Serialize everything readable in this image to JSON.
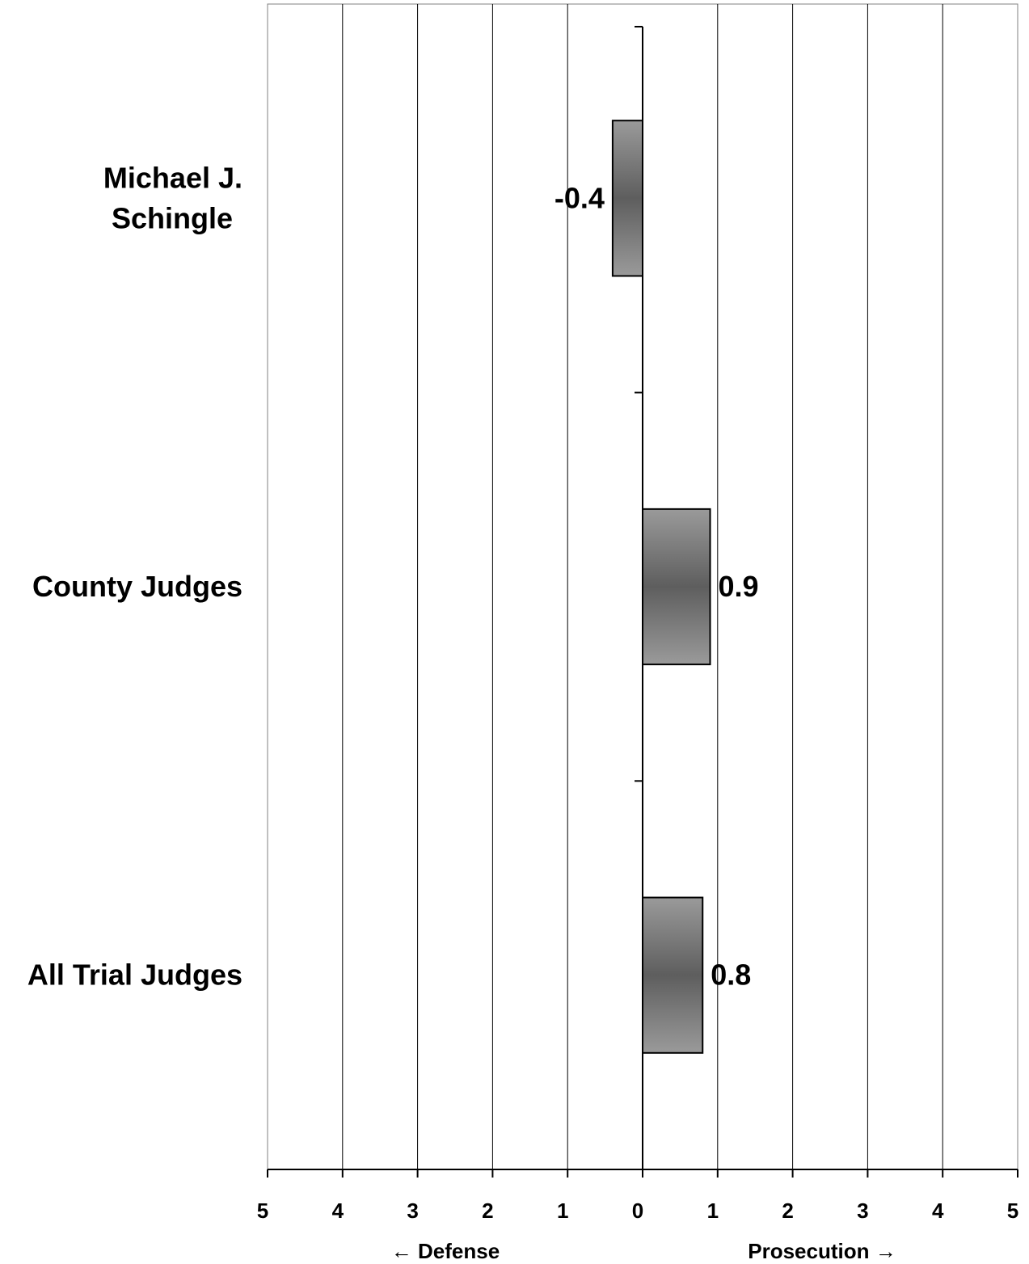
{
  "chart_data": {
    "type": "bar",
    "orientation": "horizontal",
    "categories": [
      "Michael J. Schingle",
      "County Judges",
      "All Trial Judges"
    ],
    "category_label_lines": [
      [
        "Michael J.",
        "Schingle"
      ],
      [
        "County Judges"
      ],
      [
        "All Trial Judges"
      ]
    ],
    "values": [
      -0.4,
      0.9,
      0.8
    ],
    "data_labels": [
      "-0.4",
      "0.9",
      "0.8"
    ],
    "xlim": [
      -5,
      5
    ],
    "x_ticks": [
      -5,
      -4,
      -3,
      -2,
      -1,
      0,
      1,
      2,
      3,
      4,
      5
    ],
    "x_tick_labels": [
      "5",
      "4",
      "3",
      "2",
      "1",
      "0",
      "1",
      "2",
      "3",
      "4",
      "5"
    ],
    "direction_labels": {
      "left": "← Defense",
      "right": "Prosecution →"
    },
    "grid": true,
    "legend": "none",
    "bar_fill": {
      "edge": "#9a9a9a",
      "center": "#5e5e5e",
      "outline": "#000000"
    }
  }
}
